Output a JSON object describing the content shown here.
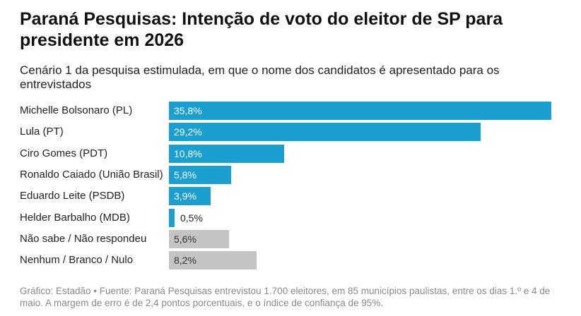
{
  "chart_data": {
    "type": "bar",
    "orientation": "horizontal",
    "title": "Paraná Pesquisas: Intenção de voto do eleitor de SP para presidente em 2026",
    "subtitle": "Cenário 1 da pesquisa estimulada, em que o nome dos candidatos é apresentado para os entrevistados",
    "categories": [
      "Michelle Bolsonaro (PL)",
      "Lula (PT)",
      "Ciro Gomes (PDT)",
      "Ronaldo Caiado (União Brasil)",
      "Eduardo Leite (PSDB)",
      "Helder Barbalho (MDB)",
      "Não sabe / Não respondeu",
      "Nenhum / Branco / Nulo"
    ],
    "values": [
      35.8,
      29.2,
      10.8,
      5.8,
      3.9,
      0.5,
      5.6,
      8.2
    ],
    "value_labels": [
      "35,8%",
      "29,2%",
      "10,8%",
      "5,8%",
      "3,9%",
      "0,5%",
      "5,6%",
      "8,2%"
    ],
    "bar_colors": [
      "#1a9fd0",
      "#1a9fd0",
      "#1a9fd0",
      "#1a9fd0",
      "#1a9fd0",
      "#1a9fd0",
      "#c4c4c4",
      "#c4c4c4"
    ],
    "xlim": [
      0,
      35.8
    ],
    "grid": false,
    "legend": "none",
    "footer": "Gráfico: Estadão • Fuente: Paraná Pesquisas entrevistou 1.700 eleitores, em 85 municípios paulistas, entre os dias 1.º e 4 de maio. A margem de erro é de 2,4 pontos porcentuais, e o índice de confiança de 95%."
  }
}
